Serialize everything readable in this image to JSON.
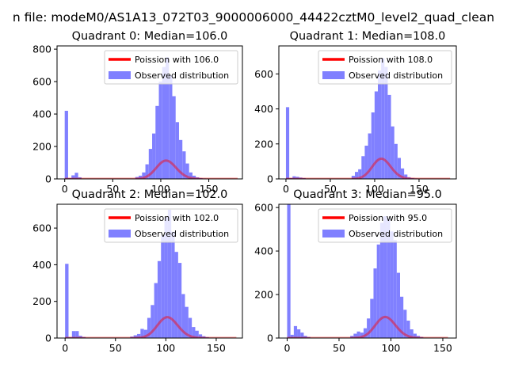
{
  "figure": {
    "suptitle": "n file: modeM0/AS1A13_072T03_9000006000_44422cztM0_level2_quad_clean"
  },
  "chart_data": [
    {
      "type": "bar",
      "title": "Quadrant 0: Median=106.0",
      "xlim": [
        -8,
        185
      ],
      "ylim": [
        0,
        820
      ],
      "xticks": [
        0,
        50,
        100,
        150
      ],
      "yticks": [
        0,
        200,
        400,
        600,
        800
      ],
      "grid": false,
      "legend_position": "top-right",
      "median": 106.0,
      "bar_color": "#8080ff",
      "line_color": "#ff0000",
      "hist": {
        "name": "Observed distribution",
        "bin_width": 3.5,
        "edges": [
          0,
          3.5,
          7,
          10.5,
          14,
          73.5,
          77,
          80.5,
          84,
          87.5,
          91,
          94.5,
          98,
          101.5,
          105,
          108.5,
          112,
          115.5,
          119,
          122.5,
          126,
          129.5,
          133,
          136.5,
          140,
          143.5
        ],
        "counts": [
          420,
          5,
          22,
          38,
          10,
          12,
          20,
          40,
          90,
          185,
          280,
          450,
          600,
          690,
          750,
          640,
          510,
          350,
          240,
          170,
          95,
          40,
          20,
          10,
          5,
          3
        ]
      },
      "model": {
        "name": "Poission with 106.0",
        "mean": 106.0,
        "scale": 2920,
        "x_range": [
          0,
          180
        ]
      }
    },
    {
      "type": "bar",
      "title": "Quadrant 1: Median=108.0",
      "xlim": [
        -8,
        192
      ],
      "ylim": [
        0,
        760
      ],
      "xticks": [
        0,
        50,
        100,
        150
      ],
      "yticks": [
        0,
        200,
        400,
        600
      ],
      "grid": false,
      "legend_position": "top-right",
      "median": 108.0,
      "bar_color": "#8080ff",
      "line_color": "#ff0000",
      "hist": {
        "name": "Observed distribution",
        "bin_width": 3.7,
        "edges": [
          0,
          3.7,
          7.4,
          11.1,
          14.8,
          18.5,
          74,
          77.7,
          81.4,
          85.1,
          88.8,
          92.5,
          96.2,
          99.9,
          103.6,
          107.3,
          111,
          114.7,
          118.4,
          122.1,
          125.8,
          129.5,
          133.2,
          136.9,
          140.6,
          144.3
        ],
        "counts": [
          410,
          5,
          15,
          12,
          8,
          5,
          18,
          40,
          55,
          130,
          190,
          260,
          380,
          500,
          620,
          690,
          640,
          480,
          300,
          200,
          120,
          60,
          25,
          10,
          5,
          3
        ]
      },
      "model": {
        "name": "Poission with 108.0",
        "mean": 108.0,
        "scale": 3010,
        "x_range": [
          0,
          185
        ]
      }
    },
    {
      "type": "bar",
      "title": "Quadrant 2: Median=102.0",
      "xlim": [
        -8,
        176
      ],
      "ylim": [
        0,
        730
      ],
      "xticks": [
        0,
        50,
        100,
        150
      ],
      "yticks": [
        0,
        200,
        400,
        600
      ],
      "grid": false,
      "legend_position": "top-right",
      "median": 102.0,
      "bar_color": "#8080ff",
      "line_color": "#ff0000",
      "hist": {
        "name": "Observed distribution",
        "bin_width": 3.4,
        "edges": [
          0,
          3.4,
          6.8,
          10.2,
          13.6,
          17,
          64.6,
          68,
          71.4,
          74.8,
          78.2,
          81.6,
          85,
          88.4,
          91.8,
          95.2,
          98.6,
          102,
          105.4,
          108.8,
          112.2,
          115.6,
          119,
          122.4,
          125.8,
          129.2,
          132.6,
          136,
          139.4
        ],
        "counts": [
          405,
          5,
          38,
          38,
          12,
          6,
          8,
          15,
          22,
          50,
          45,
          110,
          180,
          300,
          420,
          560,
          660,
          700,
          580,
          470,
          410,
          240,
          170,
          110,
          60,
          40,
          20,
          10,
          5
        ]
      },
      "model": {
        "name": "Poission with 102.0",
        "mean": 102.0,
        "scale": 2880,
        "x_range": [
          0,
          170
        ]
      }
    },
    {
      "type": "bar",
      "title": "Quadrant 3: Median=95.0",
      "xlim": [
        -8,
        163
      ],
      "ylim": [
        0,
        615
      ],
      "xticks": [
        0,
        50,
        100,
        150
      ],
      "yticks": [
        0,
        200,
        400,
        600
      ],
      "grid": false,
      "legend_position": "top-right",
      "median": 95.0,
      "bar_color": "#8080ff",
      "line_color": "#ff0000",
      "hist": {
        "name": "Observed distribution",
        "bin_width": 3.2,
        "edges": [
          0,
          3.2,
          6.4,
          9.6,
          12.8,
          16,
          19.2,
          60.8,
          64,
          67.2,
          70.4,
          73.6,
          76.8,
          80,
          83.2,
          86.4,
          89.6,
          92.8,
          96,
          99.2,
          102.4,
          105.6,
          108.8,
          112,
          115.2,
          118.4,
          121.6,
          124.8,
          128
        ],
        "counts": [
          615,
          15,
          55,
          40,
          25,
          10,
          5,
          10,
          20,
          30,
          25,
          45,
          90,
          180,
          320,
          430,
          530,
          560,
          550,
          490,
          450,
          300,
          190,
          130,
          80,
          40,
          20,
          10,
          5
        ]
      },
      "model": {
        "name": "Poission with 95.0",
        "mean": 95.0,
        "scale": 2370,
        "x_range": [
          0,
          155
        ]
      }
    }
  ]
}
